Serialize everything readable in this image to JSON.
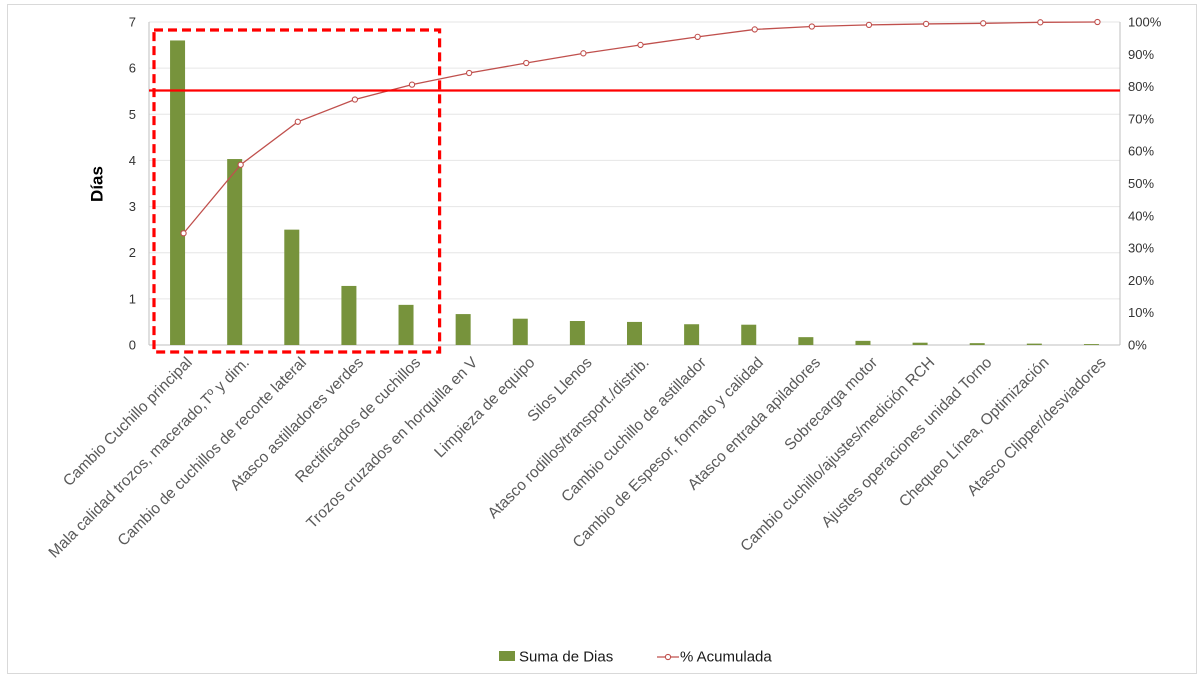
{
  "chart_data": {
    "type": "bar",
    "ylabel": "Días",
    "ylim": [
      0,
      7
    ],
    "y_ticks": [
      "0",
      "1",
      "2",
      "3",
      "4",
      "5",
      "6",
      "7"
    ],
    "y2lim": [
      0,
      100
    ],
    "y2_ticks": [
      "0%",
      "10%",
      "20%",
      "30%",
      "40%",
      "50%",
      "60%",
      "70%",
      "80%",
      "90%",
      "100%"
    ],
    "categories": [
      "Cambio Cuchillo principal",
      "Mala calidad trozos, macerado,Tº y dim.",
      "Cambio de cuchillos de recorte lateral",
      "Atasco astilladores verdes",
      "Rectificados de cuchillos",
      "Trozos cruzados en horquilla en V",
      "Limpieza de equipo",
      "Silos Llenos",
      "Atasco rodillos/transport./distrib.",
      "Cambio cuchillo de astillador",
      "Cambio de Espesor, formato y calidad",
      "Atasco entrada apiladores",
      "Sobrecarga motor",
      "Cambio cuchillo/ajustes/medición RCH",
      "Ajustes operaciones unidad Torno",
      "Chequeo Línea, Optimización",
      "Atasco Clipper/desviadores"
    ],
    "series": [
      {
        "name": "Suma de Dias",
        "type": "bar",
        "axis": "left",
        "color": "#77933C",
        "values": [
          6.6,
          4.03,
          2.5,
          1.28,
          0.87,
          0.67,
          0.57,
          0.52,
          0.5,
          0.45,
          0.44,
          0.17,
          0.09,
          0.05,
          0.04,
          0.03,
          0.02
        ]
      },
      {
        "name": "% Acumulada",
        "type": "line",
        "axis": "right",
        "color": "#C0504D",
        "values": [
          34.6,
          55.8,
          69.1,
          76.0,
          80.6,
          84.2,
          87.3,
          90.3,
          92.9,
          95.4,
          97.7,
          98.6,
          99.1,
          99.4,
          99.6,
          99.9,
          100
        ]
      }
    ],
    "reference_line": {
      "axis": "right",
      "value": 78.8,
      "color": "#FF0000"
    },
    "highlight_box": {
      "from_category": 0,
      "to_category": 4,
      "color": "#FF0000",
      "style": "dashed"
    },
    "legend_position": "bottom",
    "grid": true
  }
}
